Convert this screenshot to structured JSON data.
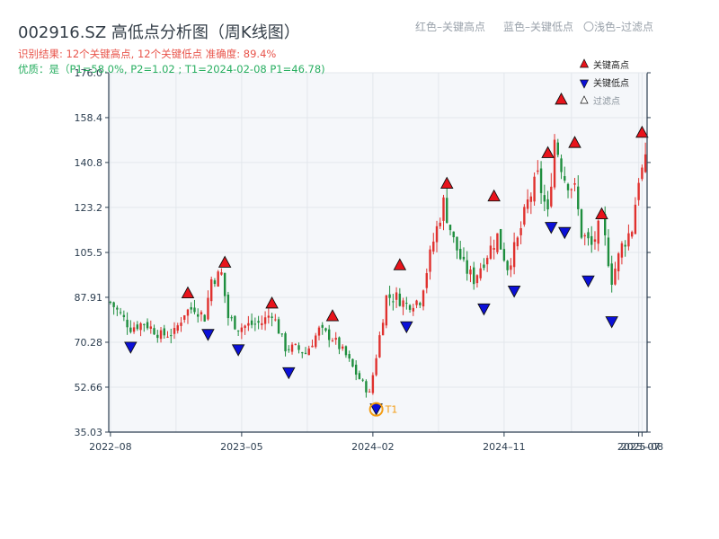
{
  "header": {
    "title": "002916.SZ 高低点分析图（周K线图）",
    "hint_red": "红色–关键高点",
    "hint_blue": "蓝色–关键低点",
    "hint_light": "〇浅色–过滤点",
    "result_line": "识别结果: 12个关键高点, 12个关键低点  准确度: 89.4%",
    "quality_line": "优质：是（P1=58.0%, P2=1.02 ; T1=2024-02-08 P1=46.78)"
  },
  "colors": {
    "up": "#e0312e",
    "down": "#1e8e3e",
    "high_marker": "#e8131b",
    "low_marker": "#0b10d8",
    "t1": "#f39c12",
    "plot_bg": "#f5f7fa",
    "grid": "#e3e7ec",
    "axis": "#2c3e50",
    "tick_text": "#2c3e50"
  },
  "chart_data": {
    "type": "candlestick",
    "y_ticks": [
      "35.03",
      "52.66",
      "70.28",
      "87.91",
      "105.5",
      "123.2",
      "140.8",
      "158.4",
      "176.0"
    ],
    "y_tick_values": [
      35.03,
      52.66,
      70.28,
      87.91,
      105.5,
      123.2,
      140.8,
      158.4,
      176.0
    ],
    "ylim": [
      35.03,
      176.0
    ],
    "x_ticks": [
      {
        "label": "2022–08",
        "week": 0
      },
      {
        "label": "2023–05",
        "week": 39
      },
      {
        "label": "2024–02",
        "week": 78
      },
      {
        "label": "2024–11",
        "week": 117
      },
      {
        "label": "2025–07",
        "week": 157
      },
      {
        "label": "2025–08",
        "week": 158
      }
    ],
    "weeks": 160,
    "legend": {
      "position": "top-right",
      "entries": [
        {
          "label": "关键高点",
          "kind": "high"
        },
        {
          "label": "关键低点",
          "kind": "low"
        },
        {
          "label": "过滤点",
          "kind": "filtered"
        }
      ]
    },
    "series_path_closes": [
      [
        0,
        86
      ],
      [
        6,
        76
      ],
      [
        10,
        78
      ],
      [
        15,
        73
      ],
      [
        19,
        74
      ],
      [
        22,
        82
      ],
      [
        25,
        84
      ],
      [
        28,
        80
      ],
      [
        30,
        95
      ],
      [
        33,
        97
      ],
      [
        35,
        80
      ],
      [
        38,
        76
      ],
      [
        41,
        77
      ],
      [
        45,
        78
      ],
      [
        48,
        82
      ],
      [
        50,
        75
      ],
      [
        52,
        68
      ],
      [
        55,
        68
      ],
      [
        58,
        66
      ],
      [
        62,
        75
      ],
      [
        66,
        72
      ],
      [
        70,
        65
      ],
      [
        73,
        58
      ],
      [
        77,
        50
      ],
      [
        79,
        65
      ],
      [
        82,
        88
      ],
      [
        85,
        88
      ],
      [
        88,
        85
      ],
      [
        92,
        87
      ],
      [
        96,
        110
      ],
      [
        99,
        125
      ],
      [
        102,
        110
      ],
      [
        105,
        100
      ],
      [
        108,
        95
      ],
      [
        112,
        105
      ],
      [
        115,
        112
      ],
      [
        118,
        100
      ],
      [
        121,
        110
      ],
      [
        124,
        125
      ],
      [
        127,
        135
      ],
      [
        130,
        120
      ],
      [
        132,
        150
      ],
      [
        135,
        135
      ],
      [
        138,
        130
      ],
      [
        140,
        113
      ],
      [
        143,
        108
      ],
      [
        146,
        118
      ],
      [
        149,
        95
      ],
      [
        152,
        108
      ],
      [
        155,
        115
      ],
      [
        157,
        135
      ],
      [
        159,
        140
      ]
    ],
    "key_highs": [
      {
        "week": 23,
        "value": 87.0
      },
      {
        "week": 34,
        "value": 99.0
      },
      {
        "week": 48,
        "value": 83.0
      },
      {
        "week": 66,
        "value": 78.0
      },
      {
        "week": 86,
        "value": 98.0
      },
      {
        "week": 100,
        "value": 130.0
      },
      {
        "week": 114,
        "value": 125.0
      },
      {
        "week": 130,
        "value": 142.0
      },
      {
        "week": 134,
        "value": 163.0
      },
      {
        "week": 138,
        "value": 146.0
      },
      {
        "week": 146,
        "value": 118.0
      },
      {
        "week": 158,
        "value": 150.0
      }
    ],
    "key_lows": [
      {
        "week": 6,
        "value": 71.0
      },
      {
        "week": 29,
        "value": 76.0
      },
      {
        "week": 38,
        "value": 70.0
      },
      {
        "week": 53,
        "value": 61.0
      },
      {
        "week": 79,
        "value": 46.78
      },
      {
        "week": 88,
        "value": 79.0
      },
      {
        "week": 111,
        "value": 86.0
      },
      {
        "week": 120,
        "value": 93.0
      },
      {
        "week": 131,
        "value": 118.0
      },
      {
        "week": 135,
        "value": 116.0
      },
      {
        "week": 142,
        "value": 97.0
      },
      {
        "week": 149,
        "value": 81.0
      }
    ],
    "t1": {
      "label": "T1",
      "week": 79,
      "value": 46.78
    }
  }
}
